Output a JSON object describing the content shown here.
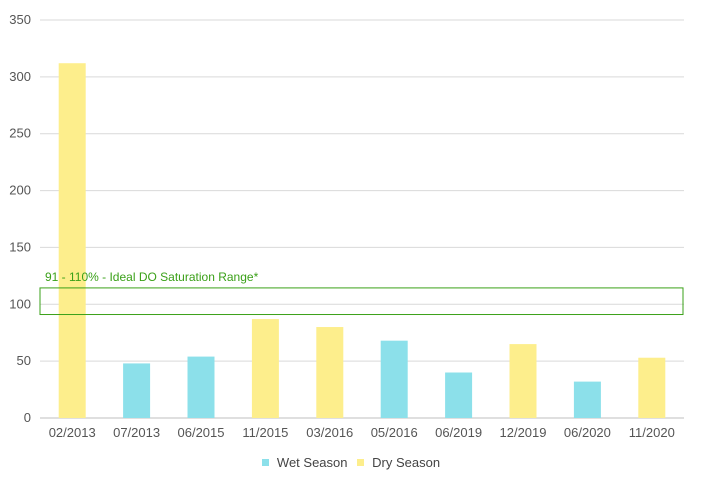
{
  "chart_data": {
    "type": "bar",
    "categories": [
      "02/2013",
      "07/2013",
      "06/2015",
      "11/2015",
      "03/2016",
      "05/2016",
      "06/2019",
      "12/2019",
      "06/2020",
      "11/2020"
    ],
    "values": [
      312,
      48,
      54,
      87,
      80,
      68,
      40,
      65,
      32,
      53
    ],
    "season": [
      "Dry Season",
      "Wet Season",
      "Wet Season",
      "Dry Season",
      "Dry Season",
      "Wet Season",
      "Wet Season",
      "Dry Season",
      "Wet Season",
      "Dry Season"
    ],
    "ylim": [
      0,
      350
    ],
    "yticks": [
      0,
      50,
      100,
      150,
      200,
      250,
      300,
      350
    ],
    "grid": true,
    "legend": {
      "placement": "bottom",
      "items": [
        {
          "label": "Wet Season",
          "color": "#8ce0ea"
        },
        {
          "label": "Dry Season",
          "color": "#fdee8c"
        }
      ]
    },
    "annotation": {
      "label": "91 - 110% - Ideal DO Saturation Range*",
      "range": [
        91,
        110
      ],
      "color": "#3aa018"
    }
  }
}
